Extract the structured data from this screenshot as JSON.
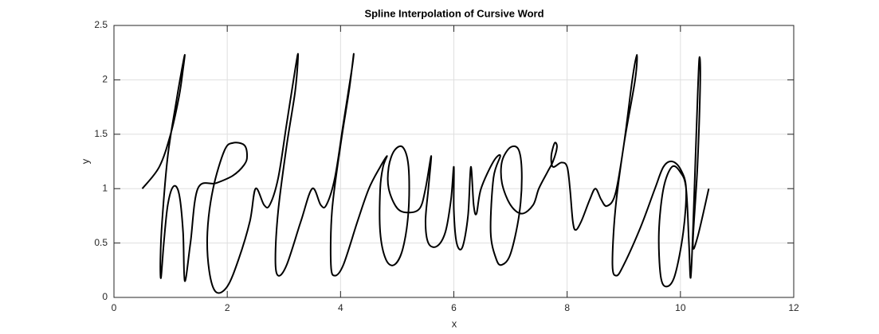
{
  "chart_data": {
    "type": "line",
    "title": "Spline Interpolation of Cursive Word",
    "x_label": "x",
    "y_label": "y",
    "color": "#000000",
    "grid": true,
    "xlim": [
      0,
      12
    ],
    "xticks": [
      0,
      2,
      4,
      6,
      8,
      10,
      12
    ],
    "ylim": [
      0,
      2.5
    ],
    "yticks": [
      0,
      0.5,
      1,
      1.5,
      2,
      2.5
    ],
    "x": [
      0.5,
      0.8,
      1.0,
      1.15,
      1.22,
      1.25,
      1.2,
      1.1,
      0.95,
      0.85,
      0.82,
      0.83,
      0.88,
      0.95,
      1.05,
      1.15,
      1.22,
      1.25,
      1.35,
      1.48,
      1.8,
      2.1,
      2.3,
      2.35,
      2.3,
      2.1,
      1.95,
      1.75,
      1.65,
      1.68,
      1.8,
      2.0,
      2.2,
      2.4,
      2.5,
      2.65,
      2.75,
      2.9,
      3.05,
      3.2,
      3.25,
      3.2,
      3.05,
      2.9,
      2.85,
      2.9,
      3.05,
      3.3,
      3.5,
      3.65,
      3.75,
      3.9,
      4.05,
      4.2,
      4.23,
      4.15,
      4.0,
      3.85,
      3.83,
      3.9,
      4.05,
      4.3,
      4.5,
      4.7,
      4.82,
      4.75,
      4.7,
      4.7,
      4.8,
      4.95,
      5.1,
      5.2,
      5.2,
      5.1,
      4.95,
      4.85,
      4.85,
      5.0,
      5.2,
      5.4,
      5.5,
      5.6,
      5.55,
      5.5,
      5.55,
      5.7,
      5.85,
      5.95,
      6.0,
      6.0,
      6.05,
      6.15,
      6.25,
      6.3,
      6.35,
      6.4,
      6.48,
      6.7,
      6.82,
      6.7,
      6.65,
      6.75,
      6.85,
      7.0,
      7.15,
      7.2,
      7.15,
      7.0,
      6.85,
      6.85,
      7.0,
      7.2,
      7.4,
      7.5,
      7.65,
      7.75,
      7.82,
      7.78,
      7.72,
      7.75,
      7.9,
      8.0,
      8.05,
      8.1,
      8.15,
      8.25,
      8.4,
      8.5,
      8.6,
      8.7,
      8.85,
      9.0,
      9.15,
      9.23,
      9.2,
      9.0,
      8.85,
      8.8,
      8.87,
      9.0,
      9.3,
      9.55,
      9.7,
      9.85,
      10.0,
      10.1,
      10.05,
      9.9,
      9.75,
      9.65,
      9.62,
      9.7,
      9.85,
      10.0,
      10.1,
      10.15,
      10.18,
      10.22,
      10.28,
      10.33,
      10.35,
      10.3,
      10.22,
      10.3,
      10.5
    ],
    "values": [
      1.0,
      1.2,
      1.5,
      1.85,
      2.1,
      2.23,
      2.1,
      1.8,
      1.3,
      0.7,
      0.35,
      0.18,
      0.5,
      0.85,
      1.02,
      0.95,
      0.6,
      0.15,
      0.5,
      1.0,
      1.05,
      1.12,
      1.22,
      1.3,
      1.4,
      1.42,
      1.35,
      1.0,
      0.6,
      0.25,
      0.05,
      0.1,
      0.35,
      0.7,
      1.0,
      0.85,
      0.85,
      1.1,
      1.6,
      2.1,
      2.23,
      1.9,
      1.4,
      0.8,
      0.35,
      0.2,
      0.3,
      0.7,
      1.0,
      0.85,
      0.85,
      1.1,
      1.6,
      2.1,
      2.23,
      1.9,
      1.4,
      0.8,
      0.3,
      0.2,
      0.3,
      0.7,
      1.0,
      1.2,
      1.3,
      1.2,
      1.0,
      0.6,
      0.35,
      0.3,
      0.45,
      0.8,
      1.2,
      1.38,
      1.35,
      1.2,
      1.0,
      0.82,
      0.78,
      0.82,
      1.0,
      1.3,
      1.0,
      0.7,
      0.5,
      0.47,
      0.6,
      0.9,
      1.2,
      0.8,
      0.5,
      0.46,
      0.75,
      1.2,
      0.85,
      0.77,
      1.0,
      1.25,
      1.3,
      1.1,
      0.6,
      0.35,
      0.3,
      0.4,
      0.75,
      1.1,
      1.35,
      1.38,
      1.25,
      1.05,
      0.85,
      0.77,
      0.85,
      1.0,
      1.15,
      1.25,
      1.38,
      1.42,
      1.3,
      1.2,
      1.24,
      1.2,
      1.0,
      0.7,
      0.62,
      0.7,
      0.9,
      1.0,
      0.9,
      0.84,
      0.95,
      1.4,
      2.0,
      2.23,
      2.0,
      1.4,
      0.8,
      0.3,
      0.2,
      0.3,
      0.65,
      1.0,
      1.2,
      1.25,
      1.18,
      1.0,
      0.6,
      0.2,
      0.1,
      0.2,
      0.6,
      1.0,
      1.2,
      1.15,
      1.0,
      0.5,
      0.18,
      0.6,
      1.5,
      2.18,
      2.0,
      1.2,
      0.5,
      0.55,
      1.0
    ]
  }
}
